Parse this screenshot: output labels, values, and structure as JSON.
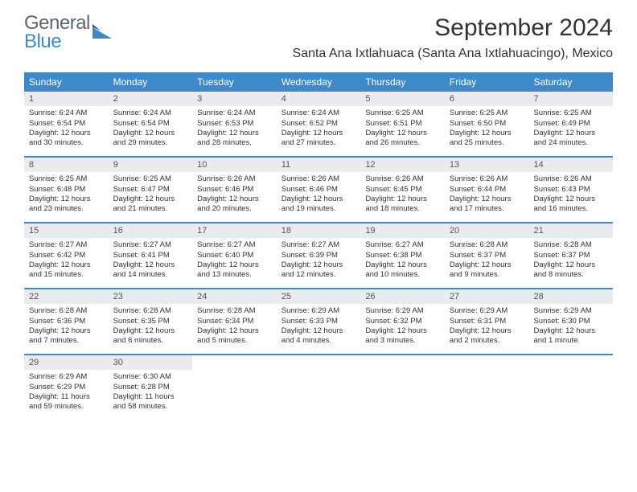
{
  "logo": {
    "line1": "General",
    "line2": "Blue"
  },
  "title": "September 2024",
  "location": "Santa Ana Ixtlahuaca (Santa Ana Ixtlahuacingo), Mexico",
  "colors": {
    "header_bg": "#3e8ac8",
    "daynum_bg": "#e8ecef",
    "text": "#333333",
    "logo_gray": "#5c6670",
    "logo_blue": "#3e8ac8"
  },
  "day_headers": [
    "Sunday",
    "Monday",
    "Tuesday",
    "Wednesday",
    "Thursday",
    "Friday",
    "Saturday"
  ],
  "weeks": [
    [
      {
        "n": "1",
        "sr": "6:24 AM",
        "ss": "6:54 PM",
        "dl": "12 hours and 30 minutes."
      },
      {
        "n": "2",
        "sr": "6:24 AM",
        "ss": "6:54 PM",
        "dl": "12 hours and 29 minutes."
      },
      {
        "n": "3",
        "sr": "6:24 AM",
        "ss": "6:53 PM",
        "dl": "12 hours and 28 minutes."
      },
      {
        "n": "4",
        "sr": "6:24 AM",
        "ss": "6:52 PM",
        "dl": "12 hours and 27 minutes."
      },
      {
        "n": "5",
        "sr": "6:25 AM",
        "ss": "6:51 PM",
        "dl": "12 hours and 26 minutes."
      },
      {
        "n": "6",
        "sr": "6:25 AM",
        "ss": "6:50 PM",
        "dl": "12 hours and 25 minutes."
      },
      {
        "n": "7",
        "sr": "6:25 AM",
        "ss": "6:49 PM",
        "dl": "12 hours and 24 minutes."
      }
    ],
    [
      {
        "n": "8",
        "sr": "6:25 AM",
        "ss": "6:48 PM",
        "dl": "12 hours and 23 minutes."
      },
      {
        "n": "9",
        "sr": "6:25 AM",
        "ss": "6:47 PM",
        "dl": "12 hours and 21 minutes."
      },
      {
        "n": "10",
        "sr": "6:26 AM",
        "ss": "6:46 PM",
        "dl": "12 hours and 20 minutes."
      },
      {
        "n": "11",
        "sr": "6:26 AM",
        "ss": "6:46 PM",
        "dl": "12 hours and 19 minutes."
      },
      {
        "n": "12",
        "sr": "6:26 AM",
        "ss": "6:45 PM",
        "dl": "12 hours and 18 minutes."
      },
      {
        "n": "13",
        "sr": "6:26 AM",
        "ss": "6:44 PM",
        "dl": "12 hours and 17 minutes."
      },
      {
        "n": "14",
        "sr": "6:26 AM",
        "ss": "6:43 PM",
        "dl": "12 hours and 16 minutes."
      }
    ],
    [
      {
        "n": "15",
        "sr": "6:27 AM",
        "ss": "6:42 PM",
        "dl": "12 hours and 15 minutes."
      },
      {
        "n": "16",
        "sr": "6:27 AM",
        "ss": "6:41 PM",
        "dl": "12 hours and 14 minutes."
      },
      {
        "n": "17",
        "sr": "6:27 AM",
        "ss": "6:40 PM",
        "dl": "12 hours and 13 minutes."
      },
      {
        "n": "18",
        "sr": "6:27 AM",
        "ss": "6:39 PM",
        "dl": "12 hours and 12 minutes."
      },
      {
        "n": "19",
        "sr": "6:27 AM",
        "ss": "6:38 PM",
        "dl": "12 hours and 10 minutes."
      },
      {
        "n": "20",
        "sr": "6:28 AM",
        "ss": "6:37 PM",
        "dl": "12 hours and 9 minutes."
      },
      {
        "n": "21",
        "sr": "6:28 AM",
        "ss": "6:37 PM",
        "dl": "12 hours and 8 minutes."
      }
    ],
    [
      {
        "n": "22",
        "sr": "6:28 AM",
        "ss": "6:36 PM",
        "dl": "12 hours and 7 minutes."
      },
      {
        "n": "23",
        "sr": "6:28 AM",
        "ss": "6:35 PM",
        "dl": "12 hours and 6 minutes."
      },
      {
        "n": "24",
        "sr": "6:28 AM",
        "ss": "6:34 PM",
        "dl": "12 hours and 5 minutes."
      },
      {
        "n": "25",
        "sr": "6:29 AM",
        "ss": "6:33 PM",
        "dl": "12 hours and 4 minutes."
      },
      {
        "n": "26",
        "sr": "6:29 AM",
        "ss": "6:32 PM",
        "dl": "12 hours and 3 minutes."
      },
      {
        "n": "27",
        "sr": "6:29 AM",
        "ss": "6:31 PM",
        "dl": "12 hours and 2 minutes."
      },
      {
        "n": "28",
        "sr": "6:29 AM",
        "ss": "6:30 PM",
        "dl": "12 hours and 1 minute."
      }
    ],
    [
      {
        "n": "29",
        "sr": "6:29 AM",
        "ss": "6:29 PM",
        "dl": "11 hours and 59 minutes."
      },
      {
        "n": "30",
        "sr": "6:30 AM",
        "ss": "6:28 PM",
        "dl": "11 hours and 58 minutes."
      },
      null,
      null,
      null,
      null,
      null
    ]
  ],
  "labels": {
    "sunrise": "Sunrise:",
    "sunset": "Sunset:",
    "daylight": "Daylight:"
  }
}
